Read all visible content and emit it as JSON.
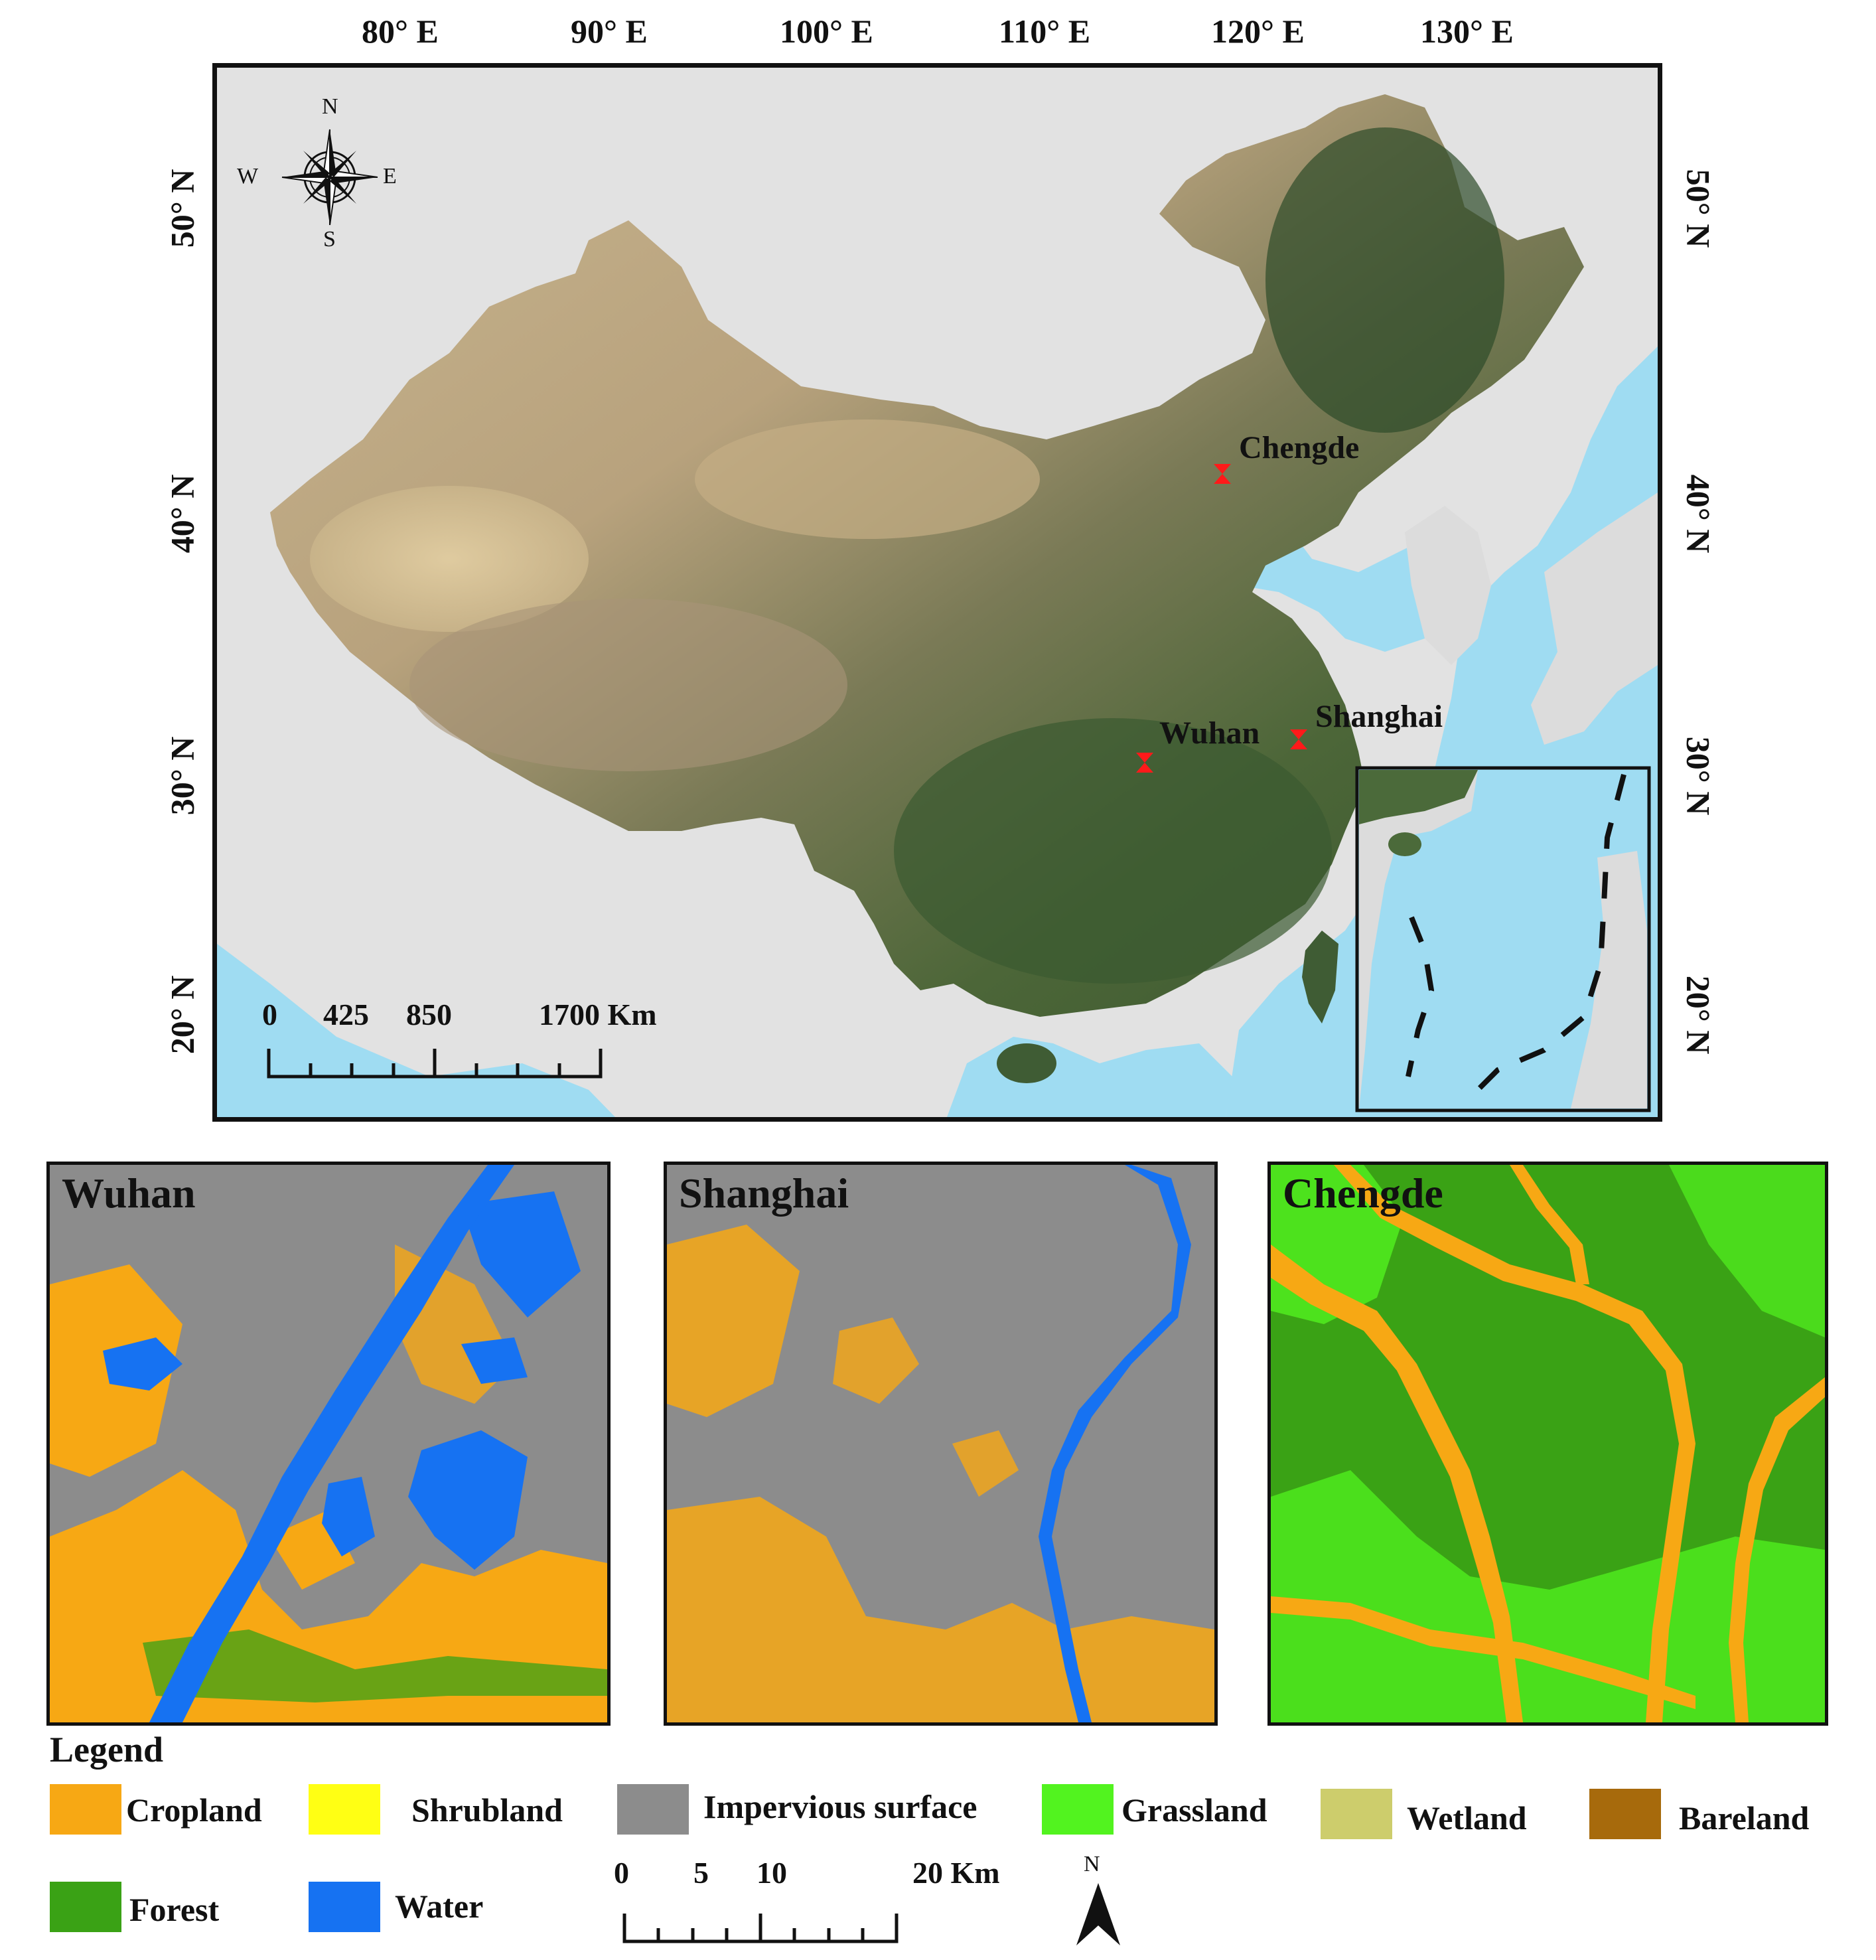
{
  "main_map": {
    "lon_labels": [
      "80° E",
      "90° E",
      "100° E",
      "110° E",
      "120° E",
      "130° E"
    ],
    "lat_labels": [
      "50° N",
      "40° N",
      "30° N",
      "20° N"
    ],
    "compass": {
      "n": "N",
      "s": "S",
      "e": "E",
      "w": "W"
    },
    "cities": [
      {
        "name": "Chengde"
      },
      {
        "name": "Wuhan"
      },
      {
        "name": "Shanghai"
      }
    ],
    "scale": {
      "labels": [
        "0",
        "425",
        "850",
        "1700 Km"
      ]
    },
    "colors": {
      "sea": "#9fdcf2",
      "land_other": "#e2e2e2",
      "marker": "#ff1a1a"
    }
  },
  "panels": [
    {
      "title": "Wuhan"
    },
    {
      "title": "Shanghai"
    },
    {
      "title": "Chengde"
    }
  ],
  "legend": {
    "title": "Legend",
    "items": [
      {
        "label": "Cropland",
        "color": "#f7a814"
      },
      {
        "label": "Shrubland",
        "color": "#ffff14"
      },
      {
        "label": "Impervious surface",
        "color": "#8c8c8c"
      },
      {
        "label": "Grassland",
        "color": "#52f31f"
      },
      {
        "label": "Wetland",
        "color": "#cdcd6c"
      },
      {
        "label": "Bareland",
        "color": "#a76a0c"
      },
      {
        "label": "Forest",
        "color": "#3aa215"
      },
      {
        "label": "Water",
        "color": "#1672f2"
      }
    ],
    "scale": {
      "labels": [
        "0",
        "5",
        "10",
        "20 Km"
      ]
    },
    "north": "N"
  }
}
